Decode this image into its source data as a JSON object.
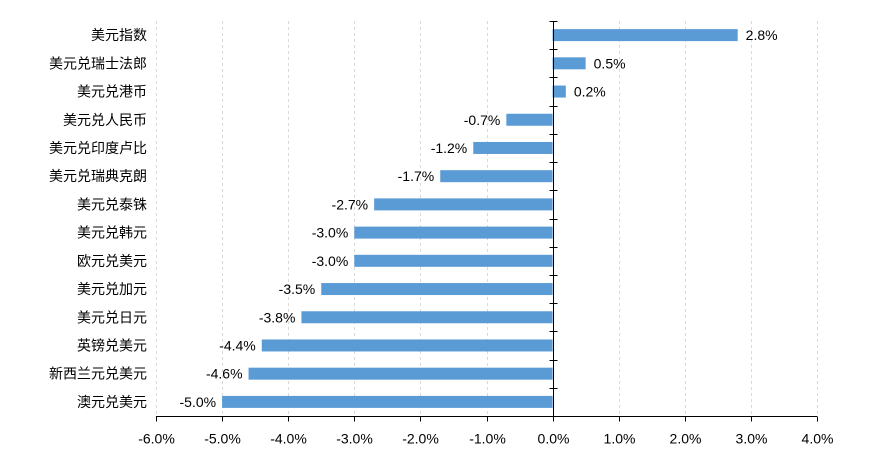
{
  "chart_data": {
    "type": "bar",
    "orientation": "horizontal",
    "categories": [
      "美元指数",
      "美元兑瑞士法郎",
      "美元兑港币",
      "美元兑人民币",
      "美元兑印度卢比",
      "美元兑瑞典克朗",
      "美元兑泰铢",
      "美元兑韩元",
      "欧元兑美元",
      "美元兑加元",
      "美元兑日元",
      "英镑兑美元",
      "新西兰元兑美元",
      "澳元兑美元"
    ],
    "values": [
      2.8,
      0.5,
      0.2,
      -0.7,
      -1.2,
      -1.7,
      -2.7,
      -3.0,
      -3.0,
      -3.5,
      -3.8,
      -4.4,
      -4.6,
      -5.0
    ],
    "data_labels": [
      "2.8%",
      "0.5%",
      "0.2%",
      "-0.7%",
      "-1.2%",
      "-1.7%",
      "-2.7%",
      "-3.0%",
      "-3.0%",
      "-3.5%",
      "-3.8%",
      "-4.4%",
      "-4.6%",
      "-5.0%"
    ],
    "xticks": [
      -6,
      -5,
      -4,
      -3,
      -2,
      -1,
      0,
      1,
      2,
      3,
      4
    ],
    "xtick_labels": [
      "-6.0%",
      "-5.0%",
      "-4.0%",
      "-3.0%",
      "-2.0%",
      "-1.0%",
      "0.0%",
      "1.0%",
      "2.0%",
      "3.0%",
      "4.0%"
    ],
    "xlim": [
      -6,
      4
    ],
    "title": "",
    "xlabel": "",
    "ylabel": "",
    "grid": "vertical dashed",
    "legend": "none",
    "bar_color": "#5B9BD5",
    "axis_color": "#000000",
    "grid_color": "#D9D9D9"
  }
}
